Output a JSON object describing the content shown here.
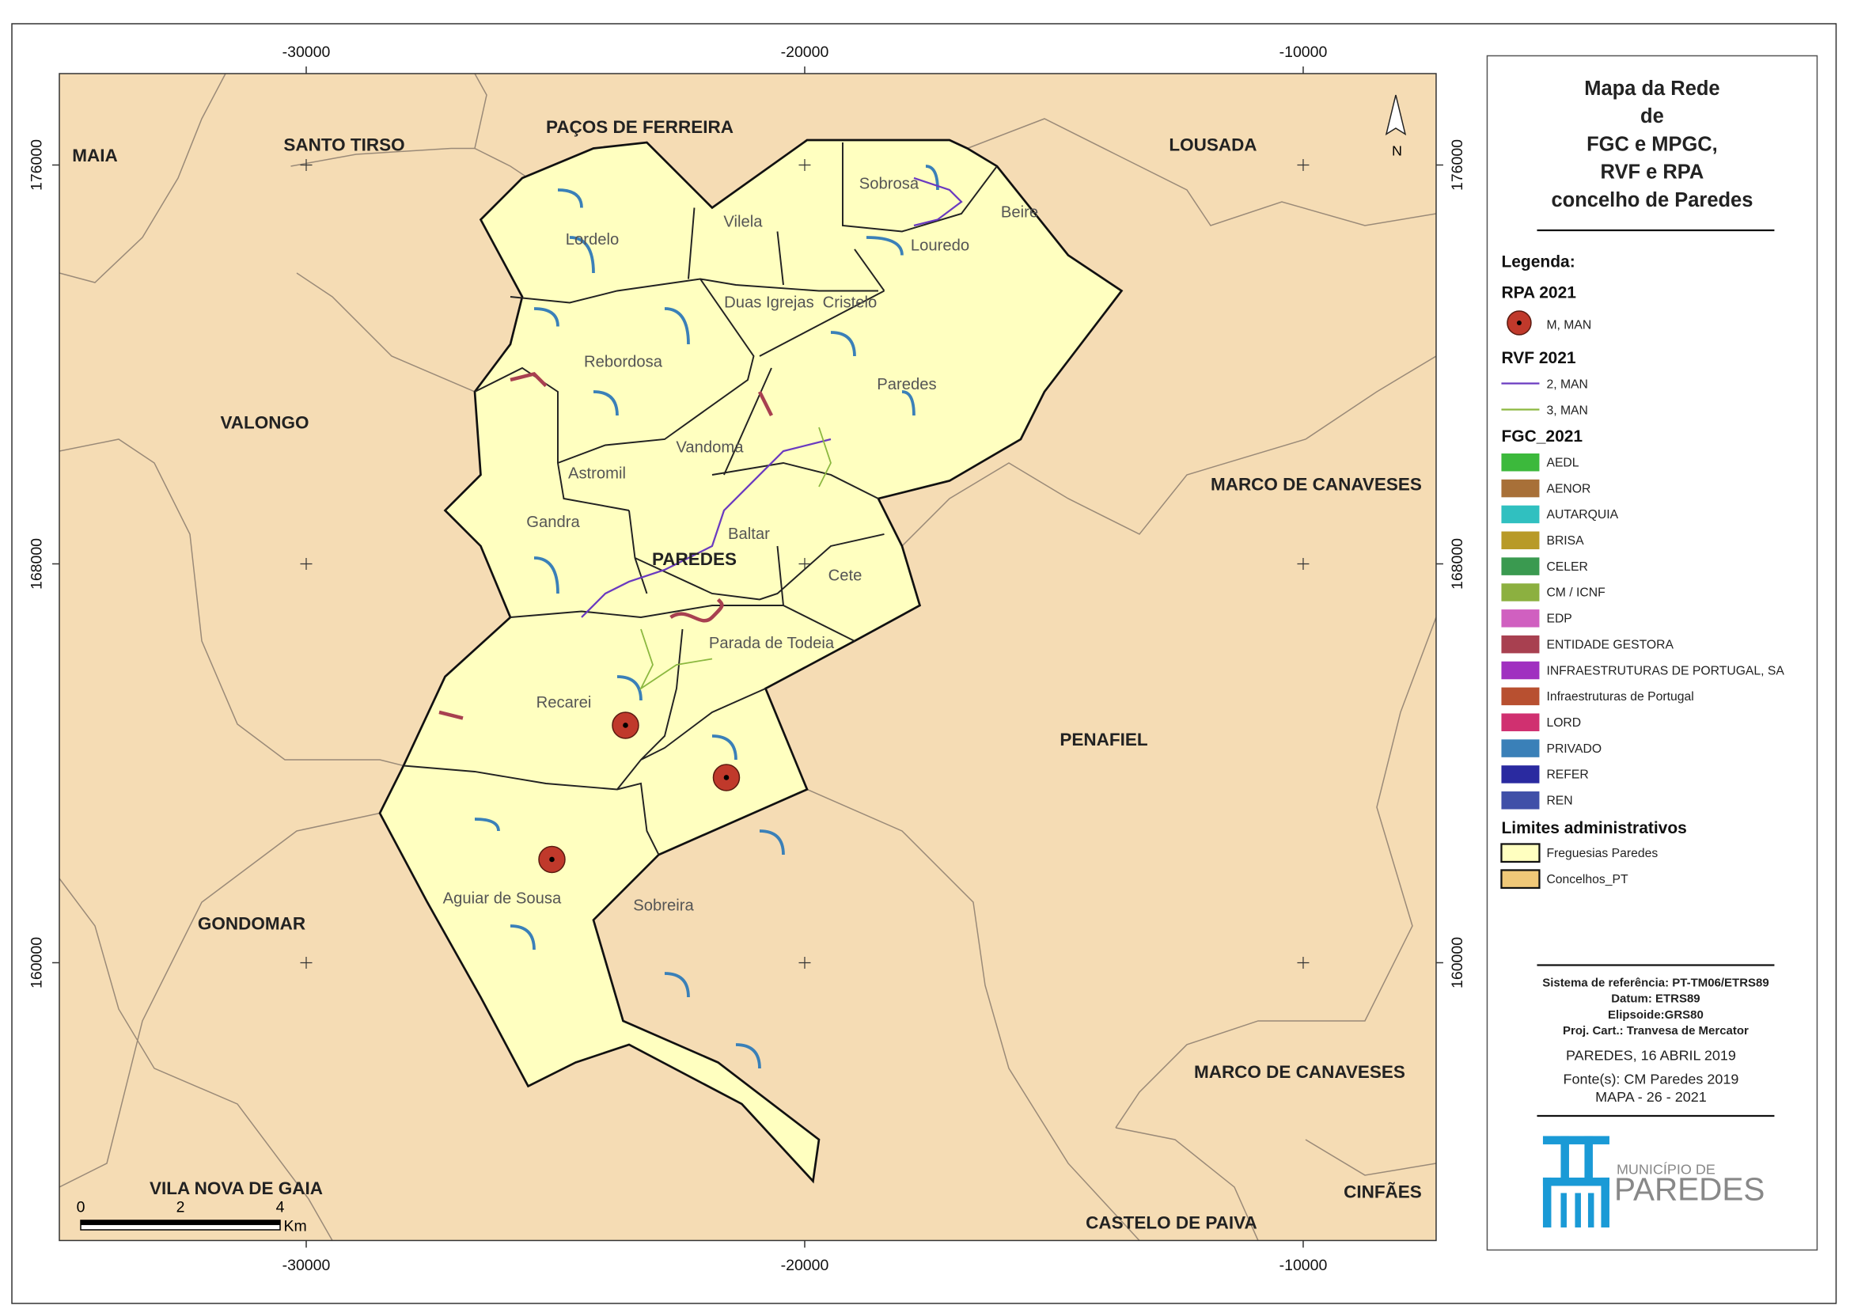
{
  "map": {
    "xticks": [
      -30000,
      -20000,
      -10000
    ],
    "yticks": [
      176000,
      168000,
      160000
    ],
    "municipalities": [
      "MAIA",
      "SANTO TIRSO",
      "PAÇOS DE FERREIRA",
      "LOUSADA",
      "VALONGO",
      "MARCO DE CANAVESES",
      "PAREDES",
      "PENAFIEL",
      "GONDOMAR",
      "MARCO DE CANAVESES",
      "VILA NOVA DE GAIA",
      "CINFÃES",
      "CASTELO DE PAIVA"
    ],
    "parishes": [
      "Sobrosa",
      "Beire",
      "Vilela",
      "Lordelo",
      "Louredo",
      "Duas Igrejas",
      "Cristelo",
      "Rebordosa",
      "Paredes",
      "Vandoma",
      "Astromil",
      "Gandra",
      "Baltar",
      "Cete",
      "Parada de Todeia",
      "Recarei",
      "Aguiar de Sousa",
      "Sobreira"
    ],
    "north": "N",
    "scale_bar": {
      "ticks": [
        0,
        2,
        4
      ],
      "unit": "Km"
    }
  },
  "legend": {
    "title": [
      "Mapa da Rede",
      "de",
      "FGC e MPGC,",
      "RVF e RPA",
      "concelho de Paredes"
    ],
    "heading": "Legenda:",
    "rpa": {
      "title": "RPA 2021",
      "items": [
        {
          "label": "M, MAN",
          "color": "#c0392b"
        }
      ]
    },
    "rvf": {
      "title": "RVF 2021",
      "items": [
        {
          "label": "2, MAN",
          "color": "#6a3ac0"
        },
        {
          "label": "3, MAN",
          "color": "#8cb840"
        }
      ]
    },
    "fgc": {
      "title": "FGC_2021",
      "items": [
        {
          "label": "AEDL",
          "color": "#3cb93c"
        },
        {
          "label": "AENOR",
          "color": "#a87038"
        },
        {
          "label": "AUTARQUIA",
          "color": "#30c0c0"
        },
        {
          "label": "BRISA",
          "color": "#b89a28"
        },
        {
          "label": "CELER",
          "color": "#3a9a50"
        },
        {
          "label": "CM / ICNF",
          "color": "#8cb040"
        },
        {
          "label": "EDP",
          "color": "#d060c0"
        },
        {
          "label": "ENTIDADE GESTORA",
          "color": "#a84050"
        },
        {
          "label": "INFRAESTRUTURAS DE PORTUGAL, SA",
          "color": "#a030c0"
        },
        {
          "label": "Infraestruturas de Portugal",
          "color": "#b85030"
        },
        {
          "label": "LORD",
          "color": "#d03070"
        },
        {
          "label": "PRIVADO",
          "color": "#3a80b8"
        },
        {
          "label": "REFER",
          "color": "#2a2aa0"
        },
        {
          "label": "REN",
          "color": "#4050a8"
        }
      ]
    },
    "limits": {
      "title": "Limites administrativos",
      "items": [
        {
          "label": "Freguesias Paredes",
          "color": "#ffffc0"
        },
        {
          "label": "Concelhos_PT",
          "color": "#f0c878"
        }
      ]
    }
  },
  "info": {
    "lines": [
      "Sistema de referência: PT-TM06/ETRS89",
      "Datum: ETRS89",
      "Elipsoide:GRS80",
      "Proj. Cart.: Tranvesa de Mercator"
    ],
    "date": "PAREDES, 16 ABRIL 2019",
    "source": "Fonte(s): CM Paredes 2019",
    "map_id": "MAPA - 26 - 2021"
  },
  "logo": {
    "line1": "MUNICÍPIO DE",
    "line2": "PAREDES"
  }
}
